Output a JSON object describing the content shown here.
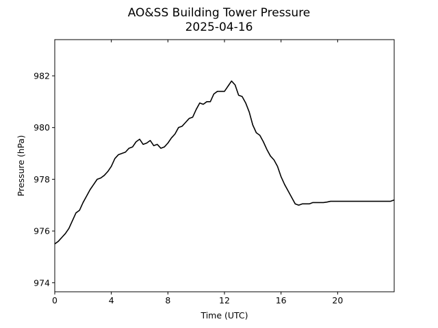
{
  "chart_data": {
    "type": "line",
    "title": "AO&SS Building Tower Pressure",
    "subtitle": "2025-04-16",
    "xlabel": "Time (UTC)",
    "ylabel": "Pressure (hPa)",
    "xlim": [
      0,
      24
    ],
    "ylim": [
      973.65,
      983.4
    ],
    "x_ticks": [
      "0",
      "4",
      "8",
      "12",
      "16",
      "20"
    ],
    "y_ticks": [
      "974",
      "976",
      "978",
      "980",
      "982"
    ],
    "grid": false,
    "legend": "none",
    "line_color": "#000000",
    "series": [
      {
        "x": [
          0,
          0.25,
          0.5,
          0.75,
          1.0,
          1.25,
          1.5,
          1.75,
          2.0,
          2.25,
          2.5,
          2.75,
          3.0,
          3.25,
          3.5,
          3.75,
          4.0,
          4.25,
          4.5,
          4.75,
          5.0,
          5.25,
          5.5,
          5.75,
          6.0,
          6.25,
          6.5,
          6.75,
          7.0,
          7.25,
          7.5,
          7.75,
          8.0,
          8.25,
          8.5,
          8.75,
          9.0,
          9.25,
          9.5,
          9.75,
          10.0,
          10.25,
          10.5,
          10.75,
          11.0,
          11.25,
          11.5,
          11.75,
          12.0,
          12.25,
          12.5,
          12.75,
          13.0,
          13.25,
          13.5,
          13.75,
          14.0,
          14.25,
          14.5,
          14.75,
          15.0,
          15.25,
          15.5,
          15.75,
          16.0,
          16.25,
          16.5,
          16.75,
          17.0,
          17.25,
          17.5,
          17.75,
          18.0,
          18.25,
          18.5,
          18.75,
          19.0,
          19.25,
          19.5,
          19.75,
          20.0,
          20.25,
          20.5,
          20.75,
          21.0,
          21.25,
          21.5,
          21.75,
          22.0,
          22.25,
          22.5,
          22.75,
          23.0,
          23.25,
          23.5,
          23.75,
          24.0
        ],
        "values": [
          975.5,
          975.6,
          975.75,
          975.9,
          976.1,
          976.4,
          976.7,
          976.8,
          977.1,
          977.35,
          977.6,
          977.8,
          978.0,
          978.05,
          978.15,
          978.3,
          978.5,
          978.8,
          978.95,
          979.0,
          979.05,
          979.2,
          979.25,
          979.45,
          979.55,
          979.35,
          979.4,
          979.5,
          979.3,
          979.35,
          979.2,
          979.25,
          979.4,
          979.6,
          979.75,
          980.0,
          980.05,
          980.2,
          980.35,
          980.4,
          980.7,
          980.95,
          980.9,
          981.0,
          981.0,
          981.3,
          981.4,
          981.4,
          981.4,
          981.6,
          981.8,
          981.65,
          981.25,
          981.2,
          980.95,
          980.6,
          980.1,
          979.8,
          979.7,
          979.45,
          979.15,
          978.9,
          978.75,
          978.5,
          978.1,
          977.8,
          977.55,
          977.3,
          977.05,
          977.0,
          977.05,
          977.05,
          977.05,
          977.1,
          977.1,
          977.1,
          977.1,
          977.12,
          977.15,
          977.15,
          977.15,
          977.15,
          977.15,
          977.15,
          977.15,
          977.15,
          977.15,
          977.15,
          977.15,
          977.15,
          977.15,
          977.15,
          977.15,
          977.15,
          977.15,
          977.15,
          977.2
        ]
      }
    ]
  }
}
